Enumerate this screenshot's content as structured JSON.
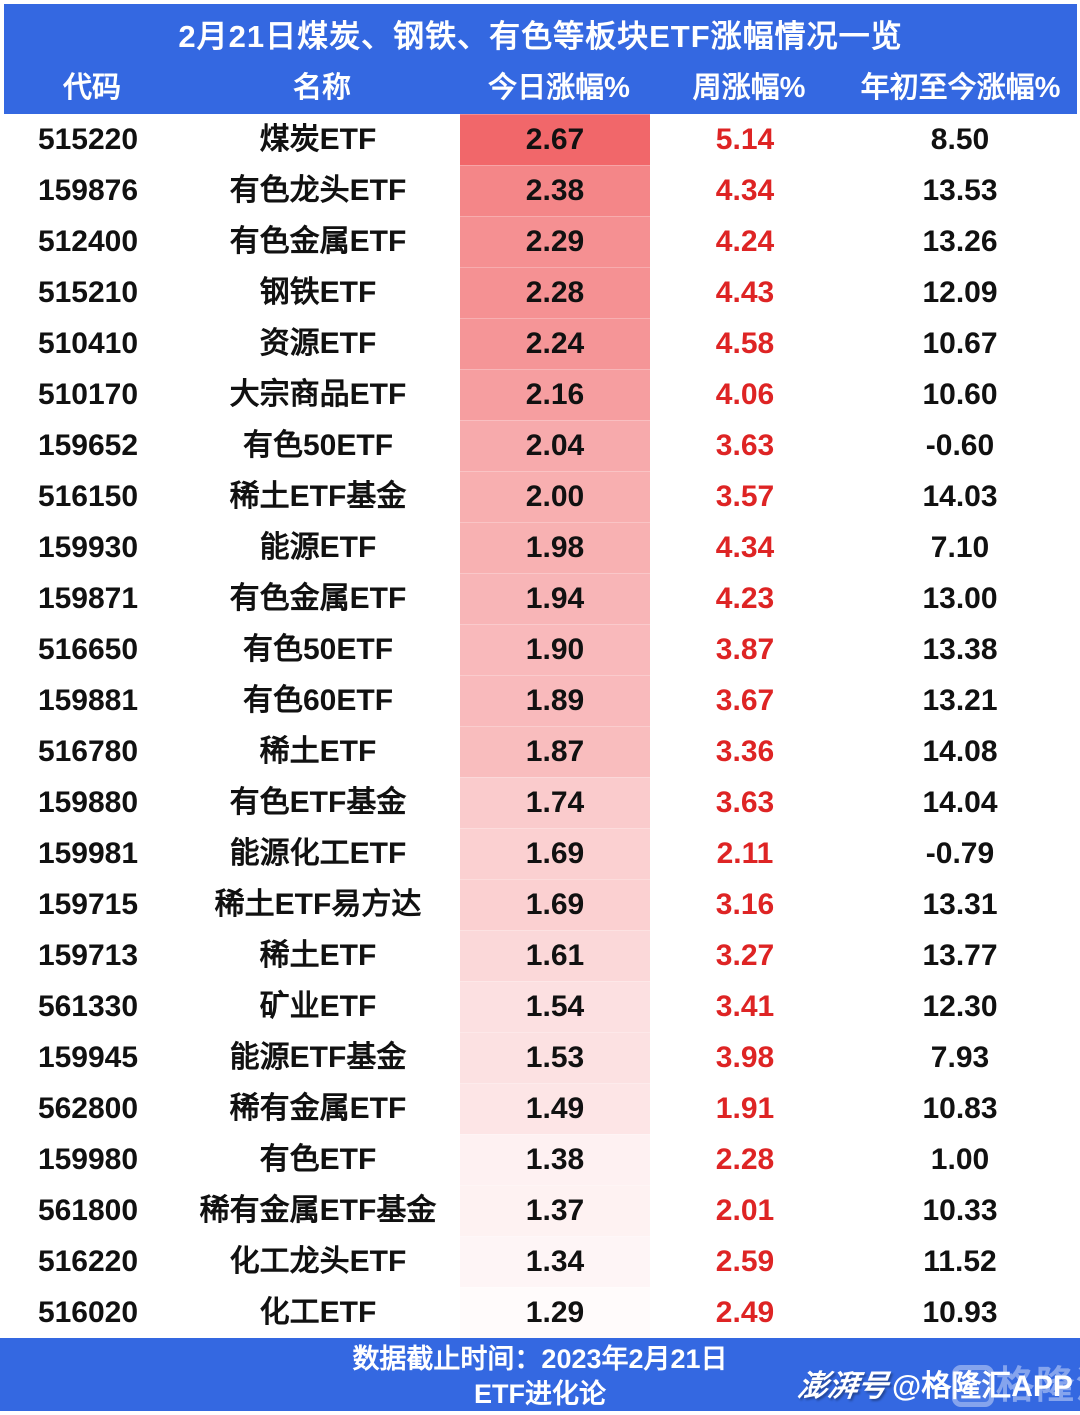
{
  "header": {
    "title": "2月21日煤炭、钢铁、有色等板块ETF涨幅情况一览"
  },
  "chart_data": {
    "type": "table",
    "title": "2月21日煤炭、钢铁、有色等板块ETF涨幅情况一览",
    "columns": [
      "代码",
      "名称",
      "今日涨幅%",
      "周涨幅%",
      "年初至今涨幅%"
    ],
    "rows": [
      [
        "515220",
        "煤炭ETF",
        2.67,
        5.14,
        8.5
      ],
      [
        "159876",
        "有色龙头ETF",
        2.38,
        4.34,
        13.53
      ],
      [
        "512400",
        "有色金属ETF",
        2.29,
        4.24,
        13.26
      ],
      [
        "515210",
        "钢铁ETF",
        2.28,
        4.43,
        12.09
      ],
      [
        "510410",
        "资源ETF",
        2.24,
        4.58,
        10.67
      ],
      [
        "510170",
        "大宗商品ETF",
        2.16,
        4.06,
        10.6
      ],
      [
        "159652",
        "有色50ETF",
        2.04,
        3.63,
        -0.6
      ],
      [
        "516150",
        "稀土ETF基金",
        2.0,
        3.57,
        14.03
      ],
      [
        "159930",
        "能源ETF",
        1.98,
        4.34,
        7.1
      ],
      [
        "159871",
        "有色金属ETF",
        1.94,
        4.23,
        13.0
      ],
      [
        "516650",
        "有色50ETF",
        1.9,
        3.87,
        13.38
      ],
      [
        "159881",
        "有色60ETF",
        1.89,
        3.67,
        13.21
      ],
      [
        "516780",
        "稀土ETF",
        1.87,
        3.36,
        14.08
      ],
      [
        "159880",
        "有色ETF基金",
        1.74,
        3.63,
        14.04
      ],
      [
        "159981",
        "能源化工ETF",
        1.69,
        2.11,
        -0.79
      ],
      [
        "159715",
        "稀土ETF易方达",
        1.69,
        3.16,
        13.31
      ],
      [
        "159713",
        "稀土ETF",
        1.61,
        3.27,
        13.77
      ],
      [
        "561330",
        "矿业ETF",
        1.54,
        3.41,
        12.3
      ],
      [
        "159945",
        "能源ETF基金",
        1.53,
        3.98,
        7.93
      ],
      [
        "562800",
        "稀有金属ETF",
        1.49,
        1.91,
        10.83
      ],
      [
        "159980",
        "有色ETF",
        1.38,
        2.28,
        1.0
      ],
      [
        "561800",
        "稀有金属ETF基金",
        1.37,
        2.01,
        10.33
      ],
      [
        "516220",
        "化工龙头ETF",
        1.34,
        2.59,
        11.52
      ],
      [
        "516020",
        "化工ETF",
        1.29,
        2.49,
        10.93
      ]
    ],
    "today_heatmap": {
      "base_rgb": "241,103,106",
      "min": 1.25,
      "range": 1.42,
      "min_alpha": 0.028
    },
    "layout": {
      "grid": "off",
      "today_column_heatmap": "red fades to white top to bottom by value"
    }
  },
  "footer": {
    "line1": "数据截止时间：2023年2月21日",
    "line2": "ETF进化论",
    "watermark_pengpai": "澎湃号",
    "watermark_account": "@格隆汇APP",
    "watermark_ghost": "格隆汇"
  },
  "colors": {
    "header_blue": "#3468E1",
    "week_red": "#DE2424",
    "today_base": "#F1676A",
    "text_dark": "#111111",
    "header_text": "#FFFFFF"
  }
}
